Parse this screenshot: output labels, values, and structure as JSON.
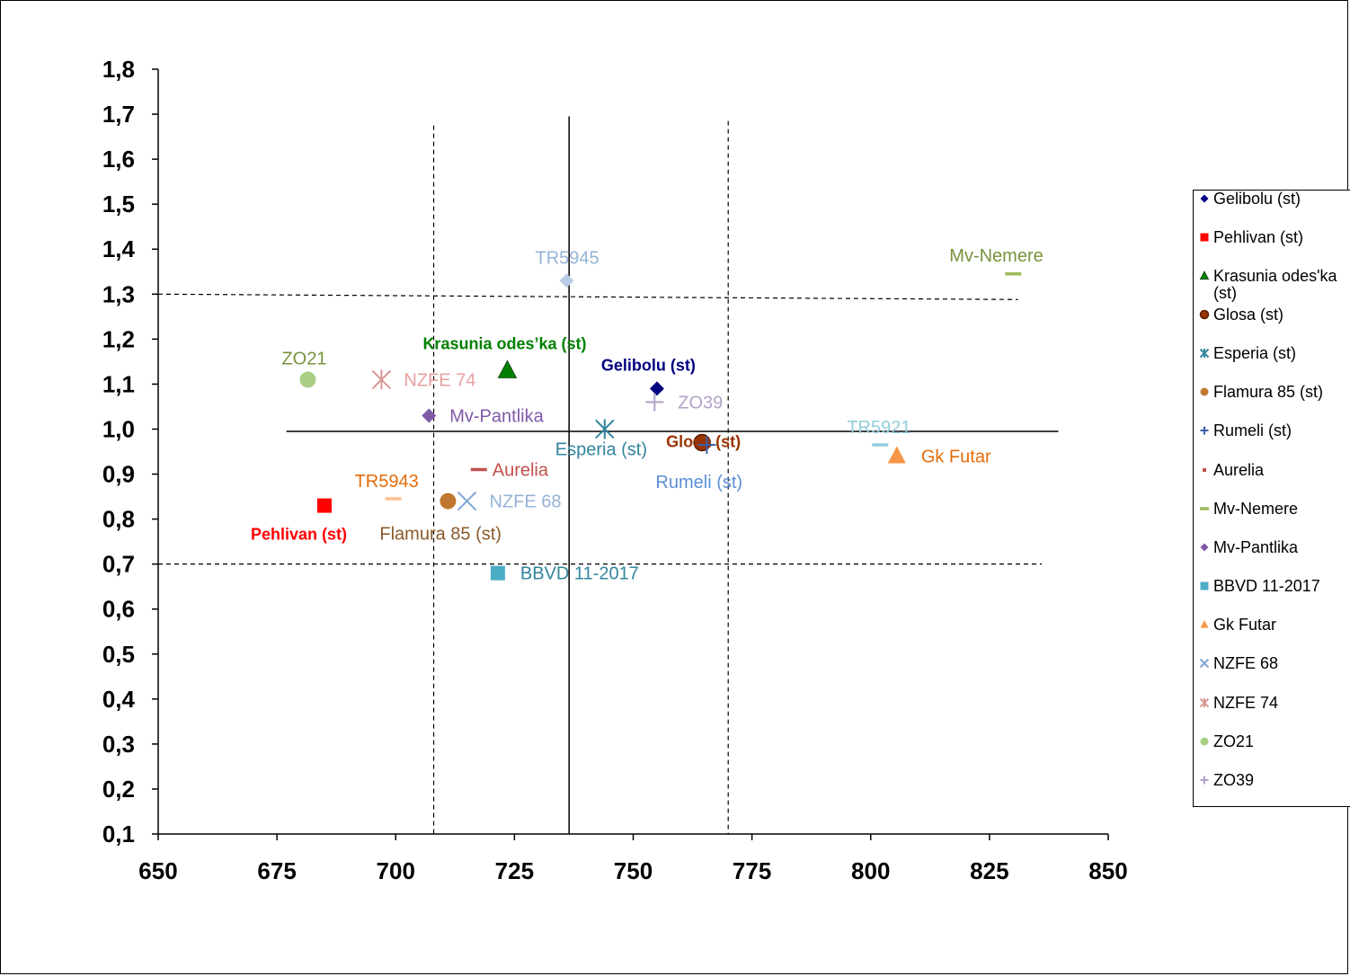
{
  "chart_data": {
    "type": "scatter",
    "xlim": [
      650,
      850
    ],
    "ylim": [
      0.1,
      1.8
    ],
    "x_ticks": [
      "650",
      "675",
      "700",
      "725",
      "750",
      "775",
      "800",
      "825",
      "850"
    ],
    "y_ticks": [
      "0,1",
      "0,2",
      "0,3",
      "0,4",
      "0,5",
      "0,6",
      "0,7",
      "0,8",
      "0,9",
      "1,0",
      "1,1",
      "1,2",
      "1,3",
      "1,4",
      "1,5",
      "1,6",
      "1,7",
      "1,8"
    ],
    "reference_lines": {
      "solid_vertical_x": 736.5,
      "solid_horizontal_y": 0.995,
      "dashed_vertical_x": [
        708,
        770
      ],
      "dashed_horizontal_y": [
        1.3,
        0.7
      ]
    },
    "grid": false,
    "legend_position": "right",
    "series": [
      {
        "name": "Gelibolu (st)",
        "label": "Gelibolu (st)",
        "x": 755,
        "y": 1.09,
        "marker": "diamond",
        "color": "#000080",
        "bold": true,
        "label_color": "#000080"
      },
      {
        "name": "Pehlivan (st)",
        "label": "Pehlivan (st)",
        "x": 685,
        "y": 0.83,
        "marker": "square",
        "color": "#ff0000",
        "bold": true,
        "label_color": "#ff0000"
      },
      {
        "name": "Krasunia odes'ka (st)",
        "label": "Krasunia odes’ka (st)",
        "x": 723.5,
        "y": 1.13,
        "marker": "triangle",
        "color": "#008000",
        "bold": true,
        "label_color": "#008000"
      },
      {
        "name": "Glosa (st)",
        "label": "Glosa (st)",
        "x": 764.5,
        "y": 0.97,
        "marker": "circle",
        "color": "#993300",
        "bold": true,
        "label_color": "#993300"
      },
      {
        "name": "Esperia (st)",
        "label": "Esperia  (st)",
        "x": 744,
        "y": 1.0,
        "marker": "asterisk",
        "color": "#31859c",
        "bold": false,
        "label_color": "#31859c"
      },
      {
        "name": "Flamura 85 (st)",
        "label": "Flamura  85 (st)",
        "x": 711,
        "y": 0.84,
        "marker": "circle",
        "color": "#c07830",
        "bold": false,
        "label_color": "#8b5a2b"
      },
      {
        "name": "Rumeli (st)",
        "label": "Rumeli  (st)",
        "x": 765.5,
        "y": 0.965,
        "marker": "plus",
        "color": "#3c5fa8",
        "bold": false,
        "label_color": "#5b8fd6"
      },
      {
        "name": "Aurelia",
        "label": "Aurelia",
        "x": 717.5,
        "y": 0.91,
        "marker": "dash",
        "color": "#c0504d",
        "bold": false,
        "label_color": "#c0504d"
      },
      {
        "name": "Mv-Nemere",
        "label": "Mv-Nemere",
        "x": 830,
        "y": 1.345,
        "marker": "dash",
        "color": "#9bbb59",
        "bold": false,
        "label_color": "#77933c"
      },
      {
        "name": "Mv-Pantlika",
        "label": "Mv-Pantlika",
        "x": 707,
        "y": 1.03,
        "marker": "diamond",
        "color": "#7f5aa8",
        "bold": false,
        "label_color": "#7f5aa8"
      },
      {
        "name": "BBVD 11-2017",
        "label": "BBVD 11-2017",
        "x": 721.5,
        "y": 0.68,
        "marker": "square",
        "color": "#4bacc6",
        "bold": false,
        "label_color": "#31859c"
      },
      {
        "name": "Gk Futar",
        "label": "Gk Futar",
        "x": 805.5,
        "y": 0.94,
        "marker": "triangle",
        "color": "#f79646",
        "bold": false,
        "label_color": "#e46c0a"
      },
      {
        "name": "NZFE 68",
        "label": "NZFE 68",
        "x": 715,
        "y": 0.84,
        "marker": "x",
        "color": "#7fa6d6",
        "bold": false,
        "label_color": "#95b3d7"
      },
      {
        "name": "NZFE 74",
        "label": "NZFE 74",
        "x": 697,
        "y": 1.11,
        "marker": "asterisk",
        "color": "#d99694",
        "bold": false,
        "label_color": "#e6a0a0"
      },
      {
        "name": "ZO21",
        "label": "ZO21",
        "x": 681.5,
        "y": 1.11,
        "marker": "circle",
        "color": "#a9cf85",
        "bold": false,
        "label_color": "#77933c"
      },
      {
        "name": "ZO39",
        "label": "ZO39",
        "x": 754.5,
        "y": 1.06,
        "marker": "plus",
        "color": "#b3a2c7",
        "bold": false,
        "label_color": "#b3a2c7"
      },
      {
        "name": "TR5945",
        "label": "TR5945",
        "x": 736,
        "y": 1.33,
        "marker": "diamond",
        "color": "#b9cde5",
        "bold": false,
        "label_color": "#95b3d7"
      },
      {
        "name": "TR5943",
        "label": "TR5943",
        "x": 699.5,
        "y": 0.845,
        "marker": "dash",
        "color": "#fac090",
        "bold": false,
        "label_color": "#e46c0a"
      },
      {
        "name": "TR5921",
        "label": "TR5921",
        "x": 802,
        "y": 0.965,
        "marker": "dash",
        "color": "#93cddd",
        "bold": false,
        "label_color": "#93cddd"
      }
    ]
  },
  "legend": {
    "items": [
      {
        "label": "Gelibolu (st)",
        "marker": "diamond",
        "color": "#000080"
      },
      {
        "label": "Pehlivan (st)",
        "marker": "square",
        "color": "#ff0000"
      },
      {
        "label": "Krasunia odes'ka (st)",
        "marker": "triangle",
        "color": "#008000"
      },
      {
        "label": "Glosa (st)",
        "marker": "circle",
        "color": "#993300"
      },
      {
        "label": "Esperia (st)",
        "marker": "asterisk",
        "color": "#31859c"
      },
      {
        "label": "Flamura 85 (st)",
        "marker": "circle",
        "color": "#c07830"
      },
      {
        "label": "Rumeli (st)",
        "marker": "plus",
        "color": "#3c5fa8"
      },
      {
        "label": "Aurelia",
        "marker": "dot",
        "color": "#c0504d"
      },
      {
        "label": "Mv-Nemere",
        "marker": "dash",
        "color": "#9bbb59"
      },
      {
        "label": "Mv-Pantlika",
        "marker": "diamond",
        "color": "#7f5aa8"
      },
      {
        "label": "BBVD 11-2017",
        "marker": "square",
        "color": "#4bacc6"
      },
      {
        "label": "Gk Futar",
        "marker": "triangle",
        "color": "#f79646"
      },
      {
        "label": "NZFE 68",
        "marker": "x",
        "color": "#7fa6d6"
      },
      {
        "label": "NZFE 74",
        "marker": "asterisk",
        "color": "#d99694"
      },
      {
        "label": "ZO21",
        "marker": "circle",
        "color": "#a9cf85"
      },
      {
        "label": "ZO39",
        "marker": "plus",
        "color": "#b3a2c7"
      }
    ]
  }
}
